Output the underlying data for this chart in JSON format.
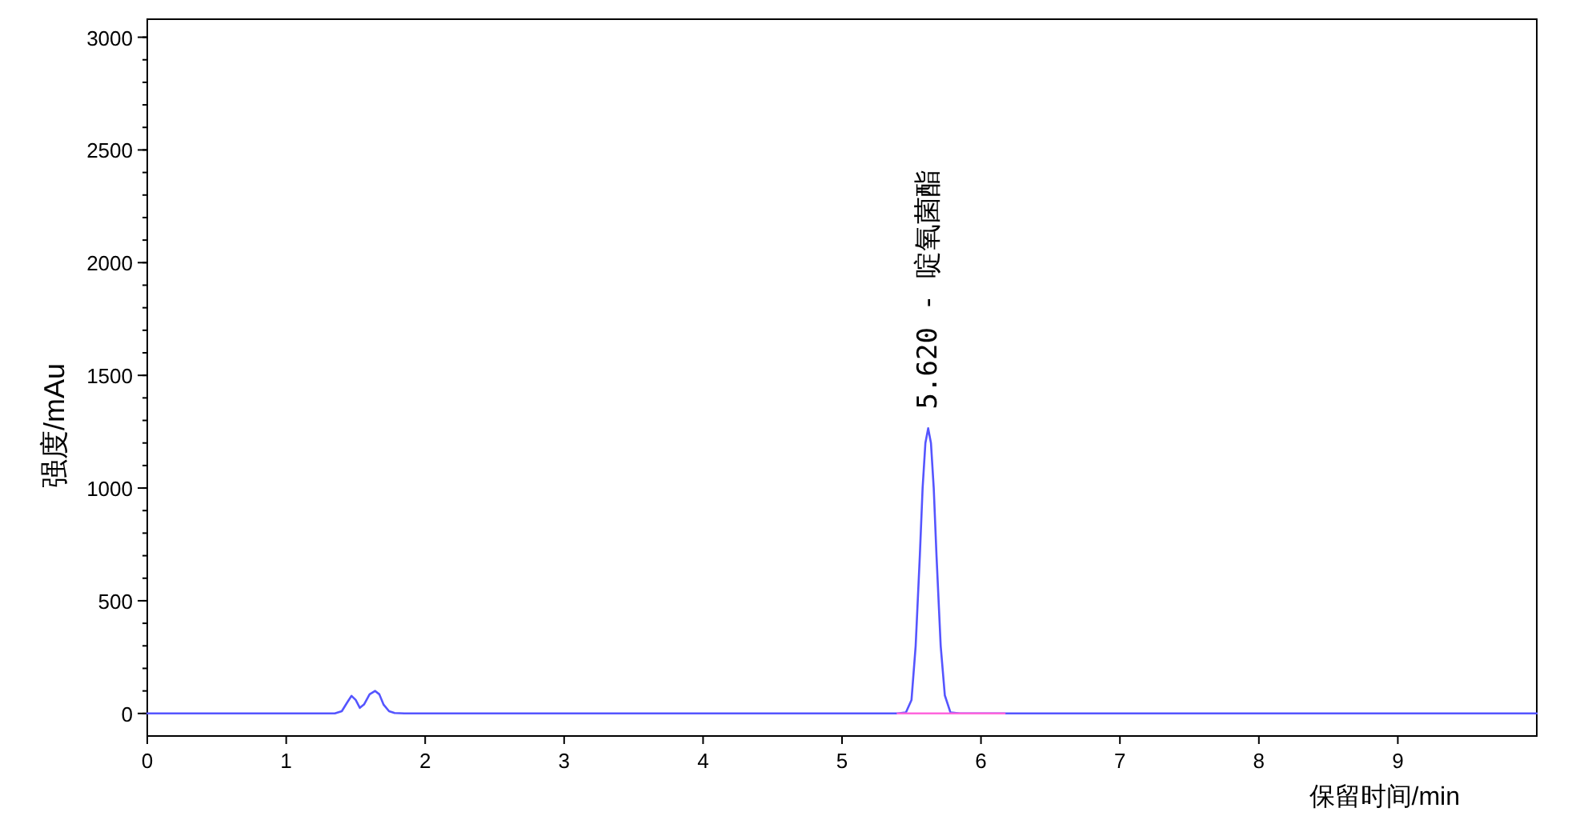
{
  "chart_data": {
    "type": "line",
    "xlabel": "保留时间/min",
    "ylabel": "强度/mAu",
    "xlim": [
      0,
      10
    ],
    "ylim": [
      -100,
      3080
    ],
    "xticks": [
      0,
      1,
      2,
      3,
      4,
      5,
      6,
      7,
      8,
      9
    ],
    "yticks": [
      0,
      500,
      1000,
      1500,
      2000,
      2500,
      3000
    ],
    "series": [
      {
        "color": "#5555ff",
        "x": [
          0,
          1.35,
          1.4,
          1.44,
          1.47,
          1.5,
          1.53,
          1.56,
          1.6,
          1.64,
          1.67,
          1.7,
          1.74,
          1.78,
          1.85,
          1.9,
          5.4,
          5.46,
          5.5,
          5.53,
          5.56,
          5.58,
          5.6,
          5.62,
          5.64,
          5.66,
          5.68,
          5.71,
          5.74,
          5.78,
          5.85,
          10
        ],
        "values": [
          0,
          0,
          10,
          50,
          78,
          60,
          25,
          40,
          85,
          100,
          85,
          40,
          10,
          2,
          0,
          0,
          0,
          5,
          60,
          300,
          700,
          1000,
          1200,
          1265,
          1200,
          1000,
          700,
          300,
          80,
          5,
          0,
          0
        ]
      },
      {
        "color": "#ff66dd",
        "x": [
          5.4,
          6.17
        ],
        "values": [
          0,
          0
        ]
      }
    ],
    "annotations": [
      {
        "text": "5.620 - 啶氧菌酯",
        "x": 5.62,
        "y": 1265
      }
    ]
  }
}
